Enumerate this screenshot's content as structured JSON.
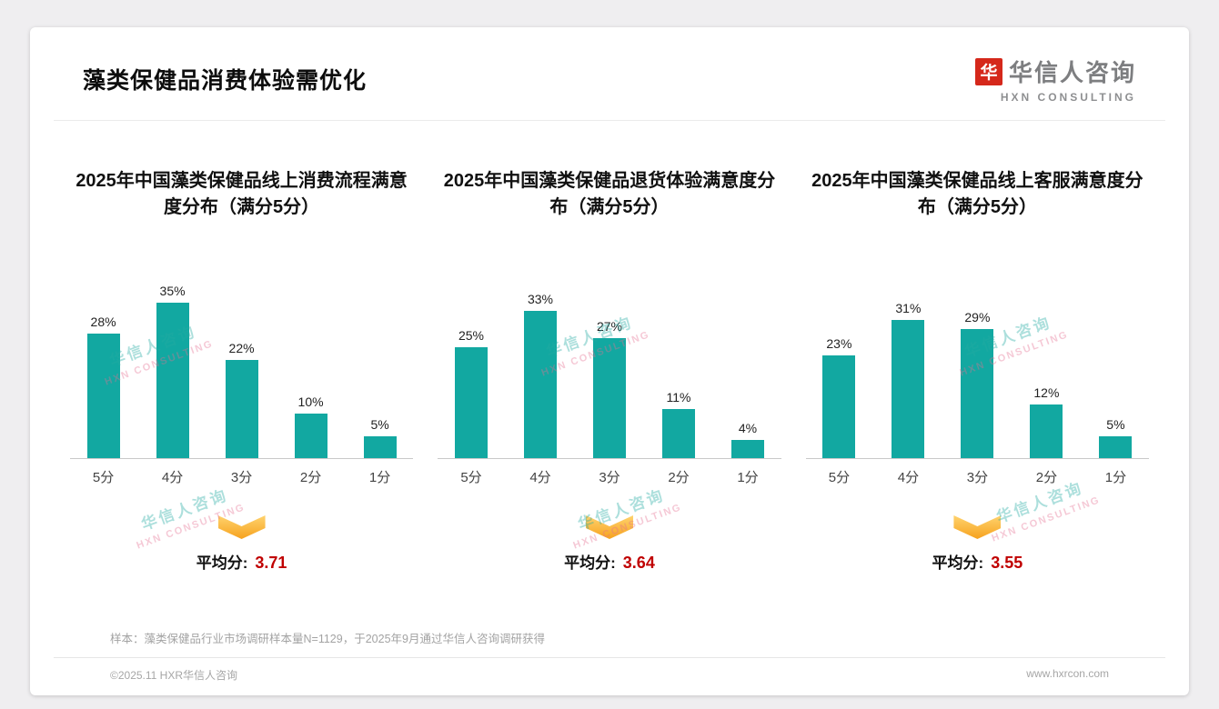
{
  "page": {
    "title": "藻类保健品消费体验需优化",
    "logo": {
      "mark": "华",
      "name": "华信人咨询",
      "subtitle": "HXN CONSULTING"
    },
    "watermark": {
      "line1": "华信人咨询",
      "line2": "HXN CONSULTING"
    },
    "footnote": "样本：藻类保健品行业市场调研样本量N=1129，于2025年9月通过华信人咨询调研获得",
    "copyright": "©2025.11 HXR华信人咨询",
    "website": "www.hxrcon.com"
  },
  "colors": {
    "bar": "#12a8a1",
    "average_value": "#c00000",
    "arrow_top": "#ffd36e",
    "arrow_bottom": "#f6a21e",
    "logo_red": "#d5281b"
  },
  "chart_data": [
    {
      "type": "bar",
      "title": "2025年中国藻类保健品线上消费流程满意度分布（满分5分）",
      "categories": [
        "5分",
        "4分",
        "3分",
        "2分",
        "1分"
      ],
      "values": [
        28,
        35,
        22,
        10,
        5
      ],
      "value_labels": [
        "28%",
        "35%",
        "22%",
        "10%",
        "5%"
      ],
      "average_label": "平均分:",
      "average": "3.71",
      "xlabel": "",
      "ylabel": "",
      "ylim": [
        0,
        40
      ],
      "grid": false,
      "legend": "none"
    },
    {
      "type": "bar",
      "title": "2025年中国藻类保健品退货体验满意度分布（满分5分）",
      "categories": [
        "5分",
        "4分",
        "3分",
        "2分",
        "1分"
      ],
      "values": [
        25,
        33,
        27,
        11,
        4
      ],
      "value_labels": [
        "25%",
        "33%",
        "27%",
        "11%",
        "4%"
      ],
      "average_label": "平均分:",
      "average": "3.64",
      "xlabel": "",
      "ylabel": "",
      "ylim": [
        0,
        40
      ],
      "grid": false,
      "legend": "none"
    },
    {
      "type": "bar",
      "title": "2025年中国藻类保健品线上客服满意度分布（满分5分）",
      "categories": [
        "5分",
        "4分",
        "3分",
        "2分",
        "1分"
      ],
      "values": [
        23,
        31,
        29,
        12,
        5
      ],
      "value_labels": [
        "23%",
        "31%",
        "29%",
        "12%",
        "5%"
      ],
      "average_label": "平均分:",
      "average": "3.55",
      "xlabel": "",
      "ylabel": "",
      "ylim": [
        0,
        40
      ],
      "grid": false,
      "legend": "none"
    }
  ]
}
